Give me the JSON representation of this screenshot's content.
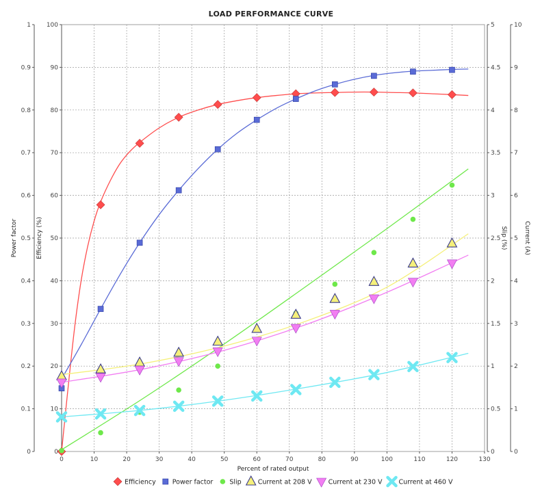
{
  "chart_data": {
    "type": "line",
    "title": "LOAD PERFORMANCE CURVE",
    "xlabel": "Percent of rated output",
    "xlim": [
      0,
      130
    ],
    "x_ticks": [
      "0",
      "10",
      "20",
      "30",
      "40",
      "50",
      "60",
      "70",
      "80",
      "90",
      "100",
      "110",
      "120",
      "130"
    ],
    "axes": {
      "power_factor": {
        "label": "Power factor",
        "lim": [
          0,
          1
        ],
        "ticks": [
          "0",
          "0.1",
          "0.2",
          "0.3",
          "0.4",
          "0.5",
          "0.6",
          "0.7",
          "0.8",
          "0.9",
          "1"
        ]
      },
      "efficiency": {
        "label": "Efficiency (%)",
        "lim": [
          0,
          100
        ],
        "ticks": [
          "0",
          "10",
          "20",
          "30",
          "40",
          "50",
          "60",
          "70",
          "80",
          "90",
          "100"
        ]
      },
      "slip": {
        "label": "Slip (%)",
        "lim": [
          0,
          5
        ],
        "ticks": [
          "0",
          "0.5",
          "1",
          "1.5",
          "2",
          "2.5",
          "3",
          "3.5",
          "4",
          "4.5",
          "5"
        ]
      },
      "current": {
        "label": "Current (A)",
        "lim": [
          0,
          10
        ],
        "ticks": [
          "0",
          "1",
          "2",
          "3",
          "4",
          "5",
          "6",
          "7",
          "8",
          "9",
          "10"
        ]
      }
    },
    "grid": true,
    "legend_position": "bottom",
    "series": [
      {
        "name": "Efficiency",
        "axis": "efficiency",
        "marker": "diamond",
        "color": "#ff4d4d",
        "x": [
          0,
          12,
          24,
          36,
          48,
          60,
          72,
          84,
          96,
          108,
          120
        ],
        "y": [
          0,
          57.8,
          72.2,
          78.3,
          81.3,
          82.9,
          83.8,
          84.1,
          84.2,
          84.0,
          83.6
        ],
        "curve_x": [
          0,
          2,
          4,
          6,
          8,
          10,
          12,
          15,
          18,
          21,
          24,
          30,
          36,
          42,
          48,
          54,
          60,
          66,
          72,
          78,
          84,
          90,
          96,
          102,
          108,
          114,
          120,
          125
        ],
        "curve_y": [
          0,
          15,
          29,
          40,
          48,
          54,
          58.5,
          63.5,
          67.5,
          70.3,
          72.4,
          75.8,
          78.3,
          80.0,
          81.3,
          82.2,
          82.9,
          83.4,
          83.8,
          84.0,
          84.1,
          84.2,
          84.2,
          84.1,
          84.0,
          83.8,
          83.6,
          83.4
        ]
      },
      {
        "name": "Power factor",
        "axis": "power_factor",
        "marker": "square",
        "color": "#5a6bd6",
        "x": [
          0,
          12,
          24,
          36,
          48,
          60,
          72,
          84,
          96,
          108,
          120
        ],
        "y": [
          0.148,
          0.334,
          0.489,
          0.612,
          0.708,
          0.777,
          0.826,
          0.86,
          0.88,
          0.89,
          0.894
        ],
        "curve_x": [
          0,
          6,
          12,
          18,
          24,
          30,
          36,
          42,
          48,
          54,
          60,
          66,
          72,
          78,
          84,
          90,
          96,
          102,
          108,
          114,
          120,
          125
        ],
        "curve_y": [
          0.17,
          0.25,
          0.334,
          0.415,
          0.489,
          0.555,
          0.612,
          0.663,
          0.708,
          0.746,
          0.777,
          0.804,
          0.826,
          0.845,
          0.86,
          0.872,
          0.881,
          0.887,
          0.891,
          0.893,
          0.895,
          0.896
        ]
      },
      {
        "name": "Slip",
        "axis": "slip",
        "marker": "circle",
        "color": "#6ee84a",
        "x": [
          0,
          12,
          24,
          36,
          48,
          60,
          72,
          84,
          96,
          108,
          120
        ],
        "y": [
          0.01,
          0.22,
          0.46,
          0.72,
          1.0,
          1.3,
          1.62,
          1.96,
          2.33,
          2.72,
          3.12
        ],
        "curve_x": [
          0,
          25,
          50,
          75,
          100,
          125
        ],
        "curve_y": [
          0.02,
          0.62,
          1.26,
          1.93,
          2.61,
          3.31
        ]
      },
      {
        "name": "Current at 208 V",
        "axis": "current",
        "marker": "triangle-up",
        "color": "#f5f07a",
        "x": [
          0,
          12,
          24,
          36,
          48,
          60,
          72,
          84,
          96,
          108,
          120
        ],
        "y": [
          1.76,
          1.92,
          2.08,
          2.31,
          2.57,
          2.87,
          3.2,
          3.57,
          3.97,
          4.4,
          4.87
        ],
        "curve_x": [
          0,
          25,
          50,
          75,
          100,
          125
        ],
        "curve_y": [
          1.8,
          2.06,
          2.47,
          3.05,
          3.85,
          5.1
        ]
      },
      {
        "name": "Current at 230 V",
        "axis": "current",
        "marker": "triangle-down",
        "color": "#f27ef2",
        "x": [
          0,
          12,
          24,
          36,
          48,
          60,
          72,
          84,
          96,
          108,
          120
        ],
        "y": [
          1.62,
          1.75,
          1.92,
          2.12,
          2.35,
          2.6,
          2.9,
          3.23,
          3.59,
          3.98,
          4.41
        ],
        "curve_x": [
          0,
          25,
          50,
          75,
          100,
          125
        ],
        "curve_y": [
          1.62,
          1.93,
          2.37,
          2.97,
          3.73,
          4.6
        ]
      },
      {
        "name": "Current at 460 V",
        "axis": "current",
        "marker": "x",
        "color": "#6ee8f2",
        "x": [
          0,
          12,
          24,
          36,
          48,
          60,
          72,
          84,
          96,
          108,
          120
        ],
        "y": [
          0.81,
          0.88,
          0.96,
          1.06,
          1.18,
          1.3,
          1.45,
          1.62,
          1.8,
          1.99,
          2.2
        ],
        "curve_x": [
          0,
          25,
          50,
          75,
          100,
          125
        ],
        "curve_y": [
          0.81,
          0.97,
          1.2,
          1.5,
          1.85,
          2.3
        ]
      }
    ]
  }
}
